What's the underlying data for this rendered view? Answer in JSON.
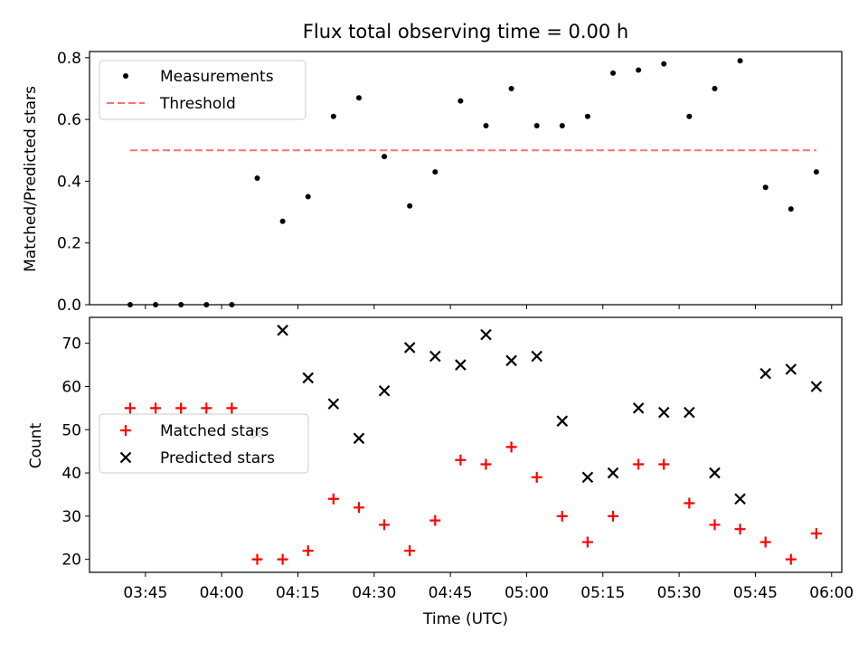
{
  "chart_data": [
    {
      "type": "scatter",
      "title": "Flux total observing time = 0.00 h",
      "xlabel": "",
      "ylabel": "Matched/Predicted stars",
      "ylim": [
        0,
        0.82
      ],
      "yticks": [
        "0.0",
        "0.2",
        "0.4",
        "0.6",
        "0.8"
      ],
      "ytick_values": [
        0,
        0.2,
        0.4,
        0.6,
        0.8
      ],
      "legend_position": "upper-left",
      "series": [
        {
          "name": "Measurements",
          "marker": "dot",
          "color": "#000000",
          "x": [
            "03:42",
            "03:47",
            "03:52",
            "03:57",
            "04:02",
            "04:07",
            "04:12",
            "04:17",
            "04:22",
            "04:27",
            "04:32",
            "04:37",
            "04:42",
            "04:47",
            "04:52",
            "04:57",
            "05:02",
            "05:07",
            "05:12",
            "05:17",
            "05:22",
            "05:27",
            "05:32",
            "05:37",
            "05:42",
            "05:47",
            "05:52",
            "05:57"
          ],
          "values": [
            0.0,
            0.0,
            0.0,
            0.0,
            0.0,
            0.41,
            0.27,
            0.35,
            0.61,
            0.67,
            0.48,
            0.32,
            0.43,
            0.66,
            0.58,
            0.7,
            0.58,
            0.58,
            0.61,
            0.75,
            0.76,
            0.78,
            0.61,
            0.7,
            0.79,
            0.38,
            0.31,
            0.43
          ]
        },
        {
          "name": "Threshold",
          "marker": "dashed-line",
          "color": "#ff7070",
          "x": [
            "03:42",
            "05:57"
          ],
          "values": [
            0.5,
            0.5
          ]
        }
      ]
    },
    {
      "type": "scatter",
      "title": "",
      "xlabel": "Time (UTC)",
      "ylabel": "Count",
      "ylim": [
        17,
        76
      ],
      "yticks": [
        "20",
        "30",
        "40",
        "50",
        "60",
        "70"
      ],
      "ytick_values": [
        20,
        30,
        40,
        50,
        60,
        70
      ],
      "xticks": [
        "03:45",
        "04:00",
        "04:15",
        "04:30",
        "04:45",
        "05:00",
        "05:15",
        "05:30",
        "05:45",
        "06:00"
      ],
      "xlim": [
        "03:34",
        "06:02"
      ],
      "legend_position": "center-left",
      "series": [
        {
          "name": "Matched stars",
          "marker": "plus",
          "color": "#ff0000",
          "x": [
            "03:42",
            "03:47",
            "03:52",
            "03:57",
            "04:02",
            "04:07",
            "04:12",
            "04:17",
            "04:22",
            "04:27",
            "04:32",
            "04:37",
            "04:42",
            "04:47",
            "04:52",
            "04:57",
            "05:02",
            "05:07",
            "05:12",
            "05:17",
            "05:22",
            "05:27",
            "05:32",
            "05:37",
            "05:42",
            "05:47",
            "05:52",
            "05:57"
          ],
          "values": [
            55,
            55,
            55,
            55,
            55,
            20,
            20,
            22,
            34,
            32,
            28,
            22,
            29,
            43,
            42,
            46,
            39,
            30,
            24,
            30,
            42,
            42,
            33,
            28,
            27,
            24,
            20,
            26
          ]
        },
        {
          "name": "Predicted stars",
          "marker": "x",
          "color": "#000000",
          "x": [
            "04:07",
            "04:12",
            "04:17",
            "04:22",
            "04:27",
            "04:32",
            "04:37",
            "04:42",
            "04:47",
            "04:52",
            "04:57",
            "05:02",
            "05:07",
            "05:12",
            "05:17",
            "05:22",
            "05:27",
            "05:32",
            "05:37",
            "05:42",
            "05:47",
            "05:52",
            "05:57"
          ],
          "values": [
            49,
            73,
            62,
            56,
            48,
            59,
            69,
            67,
            65,
            72,
            66,
            67,
            52,
            39,
            40,
            55,
            54,
            54,
            40,
            34,
            63,
            64,
            60
          ]
        }
      ]
    }
  ]
}
